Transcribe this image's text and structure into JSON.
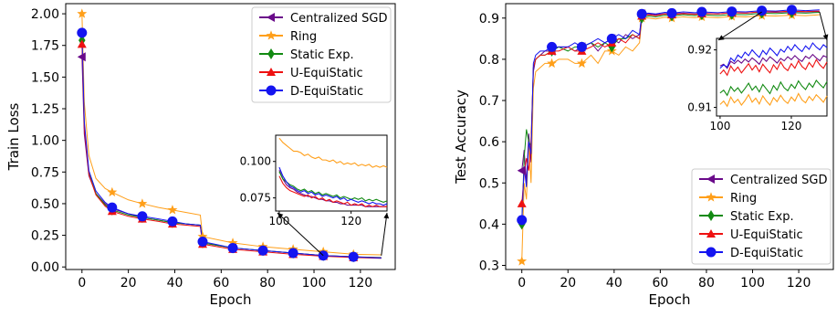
{
  "chart_data": [
    {
      "type": "line",
      "xlabel": "Epoch",
      "ylabel": "Train Loss",
      "xlim": [
        -7,
        135
      ],
      "ylim": [
        -0.02,
        2.08
      ],
      "xticks": [
        0,
        20,
        40,
        60,
        80,
        100,
        120
      ],
      "yticks": [
        0.0,
        0.25,
        0.5,
        0.75,
        1.0,
        1.25,
        1.5,
        1.75,
        2.0
      ],
      "ytick_labels": [
        "0.00",
        "0.25",
        "0.50",
        "0.75",
        "1.00",
        "1.25",
        "1.50",
        "1.75",
        "2.00"
      ],
      "legend_position": "top-right",
      "series": [
        {
          "name": "Centralized SGD",
          "color": "#6a0a8a",
          "marker": "triangle-left",
          "x": [
            0,
            1,
            3,
            6,
            10,
            13,
            20,
            26,
            33,
            39,
            45,
            51,
            52,
            65,
            78,
            91,
            104,
            117,
            129
          ],
          "y": [
            1.66,
            1.05,
            0.72,
            0.58,
            0.5,
            0.46,
            0.42,
            0.39,
            0.37,
            0.35,
            0.34,
            0.33,
            0.19,
            0.15,
            0.13,
            0.11,
            0.09,
            0.08,
            0.075
          ]
        },
        {
          "name": "Ring",
          "color": "#ff9f1a",
          "marker": "star",
          "x": [
            0,
            1,
            3,
            6,
            10,
            13,
            20,
            26,
            33,
            39,
            45,
            51,
            52,
            65,
            78,
            91,
            104,
            117,
            129
          ],
          "y": [
            2.0,
            1.3,
            0.88,
            0.7,
            0.62,
            0.59,
            0.53,
            0.5,
            0.47,
            0.45,
            0.43,
            0.41,
            0.24,
            0.19,
            0.16,
            0.14,
            0.12,
            0.1,
            0.095
          ]
        },
        {
          "name": "Static Exp.",
          "color": "#128a12",
          "marker": "diamond",
          "x": [
            0,
            1,
            3,
            6,
            10,
            13,
            20,
            26,
            33,
            39,
            45,
            51,
            52,
            65,
            78,
            91,
            104,
            117,
            129
          ],
          "y": [
            1.79,
            1.12,
            0.74,
            0.58,
            0.49,
            0.45,
            0.41,
            0.39,
            0.37,
            0.35,
            0.34,
            0.33,
            0.19,
            0.15,
            0.13,
            0.11,
            0.09,
            0.08,
            0.072
          ]
        },
        {
          "name": "U-EquiStatic",
          "color": "#ee1111",
          "marker": "triangle-up",
          "x": [
            0,
            1,
            3,
            6,
            10,
            13,
            20,
            26,
            33,
            39,
            45,
            51,
            52,
            65,
            78,
            91,
            104,
            117,
            129
          ],
          "y": [
            1.76,
            1.1,
            0.73,
            0.57,
            0.48,
            0.44,
            0.4,
            0.38,
            0.36,
            0.34,
            0.33,
            0.32,
            0.18,
            0.14,
            0.12,
            0.1,
            0.085,
            0.075,
            0.068
          ]
        },
        {
          "name": "D-EquiStatic",
          "color": "#1515f0",
          "marker": "circle",
          "x": [
            0,
            1,
            3,
            6,
            10,
            13,
            20,
            26,
            33,
            39,
            45,
            51,
            52,
            65,
            78,
            91,
            104,
            117,
            129
          ],
          "y": [
            1.85,
            1.15,
            0.76,
            0.6,
            0.51,
            0.47,
            0.42,
            0.4,
            0.38,
            0.36,
            0.34,
            0.33,
            0.2,
            0.15,
            0.13,
            0.11,
            0.09,
            0.08,
            0.07
          ]
        }
      ],
      "inset": {
        "xlim": [
          99,
          130
        ],
        "ylim": [
          0.066,
          0.118
        ],
        "xticks": [
          100,
          120
        ],
        "yticks": [
          0.075,
          0.1
        ],
        "ytick_labels": [
          "0.075",
          "0.100"
        ],
        "series_y": [
          [
            0.094,
            0.088,
            0.084,
            0.082,
            0.081,
            0.079,
            0.078,
            0.077,
            0.076,
            0.076,
            0.075,
            0.074,
            0.074,
            0.073,
            0.073,
            0.072,
            0.072,
            0.071,
            0.071,
            0.07,
            0.07,
            0.07,
            0.07,
            0.07,
            0.069,
            0.069,
            0.069,
            0.069,
            0.069,
            0.069,
            0.069
          ],
          [
            0.116,
            0.113,
            0.111,
            0.109,
            0.107,
            0.107,
            0.106,
            0.104,
            0.105,
            0.103,
            0.102,
            0.103,
            0.101,
            0.101,
            0.1,
            0.101,
            0.099,
            0.1,
            0.098,
            0.099,
            0.098,
            0.099,
            0.097,
            0.098,
            0.097,
            0.098,
            0.096,
            0.097,
            0.096,
            0.097,
            0.096
          ],
          [
            0.093,
            0.088,
            0.086,
            0.084,
            0.083,
            0.081,
            0.08,
            0.081,
            0.079,
            0.08,
            0.078,
            0.079,
            0.077,
            0.078,
            0.077,
            0.076,
            0.077,
            0.075,
            0.076,
            0.075,
            0.074,
            0.075,
            0.074,
            0.075,
            0.073,
            0.074,
            0.073,
            0.074,
            0.073,
            0.072,
            0.073
          ],
          [
            0.09,
            0.085,
            0.082,
            0.08,
            0.079,
            0.078,
            0.077,
            0.076,
            0.077,
            0.075,
            0.076,
            0.074,
            0.075,
            0.073,
            0.074,
            0.072,
            0.073,
            0.072,
            0.071,
            0.072,
            0.07,
            0.071,
            0.07,
            0.071,
            0.069,
            0.07,
            0.069,
            0.07,
            0.069,
            0.069,
            0.069
          ],
          [
            0.096,
            0.09,
            0.086,
            0.083,
            0.082,
            0.08,
            0.079,
            0.08,
            0.078,
            0.079,
            0.077,
            0.078,
            0.076,
            0.077,
            0.076,
            0.075,
            0.076,
            0.074,
            0.075,
            0.073,
            0.074,
            0.073,
            0.072,
            0.073,
            0.072,
            0.071,
            0.072,
            0.071,
            0.071,
            0.07,
            0.071
          ]
        ]
      }
    },
    {
      "type": "line",
      "xlabel": "Epoch",
      "ylabel": "Test Accuracy",
      "xlim": [
        -7,
        135
      ],
      "ylim": [
        0.29,
        0.935
      ],
      "xticks": [
        0,
        20,
        40,
        60,
        80,
        100,
        120
      ],
      "yticks": [
        0.3,
        0.4,
        0.5,
        0.6,
        0.7,
        0.8,
        0.9
      ],
      "ytick_labels": [
        "0.3",
        "0.4",
        "0.5",
        "0.6",
        "0.7",
        "0.8",
        "0.9"
      ],
      "legend_position": "lower-right",
      "series": [
        {
          "name": "Centralized SGD",
          "color": "#6a0a8a",
          "marker": "triangle-left",
          "x": [
            0,
            1,
            2,
            3,
            4,
            5,
            6,
            8,
            10,
            13,
            16,
            20,
            23,
            26,
            30,
            33,
            36,
            39,
            42,
            45,
            48,
            51,
            52,
            55,
            58,
            62,
            65,
            70,
            75,
            78,
            85,
            91,
            97,
            104,
            110,
            117,
            123,
            129
          ],
          "y": [
            0.53,
            0.58,
            0.5,
            0.62,
            0.55,
            0.77,
            0.8,
            0.81,
            0.82,
            0.82,
            0.83,
            0.83,
            0.82,
            0.83,
            0.84,
            0.82,
            0.84,
            0.85,
            0.84,
            0.86,
            0.85,
            0.86,
            0.91,
            0.91,
            0.908,
            0.911,
            0.91,
            0.912,
            0.91,
            0.912,
            0.91,
            0.913,
            0.912,
            0.915,
            0.914,
            0.916,
            0.915,
            0.916
          ]
        },
        {
          "name": "Ring",
          "color": "#ff9f1a",
          "marker": "star",
          "x": [
            0,
            1,
            2,
            3,
            4,
            5,
            6,
            8,
            10,
            13,
            16,
            20,
            23,
            26,
            30,
            33,
            36,
            39,
            42,
            45,
            48,
            51,
            52,
            55,
            58,
            62,
            65,
            70,
            75,
            78,
            85,
            91,
            97,
            104,
            110,
            117,
            123,
            129
          ],
          "y": [
            0.31,
            0.5,
            0.46,
            0.6,
            0.5,
            0.73,
            0.77,
            0.78,
            0.79,
            0.79,
            0.8,
            0.8,
            0.79,
            0.79,
            0.81,
            0.79,
            0.82,
            0.82,
            0.81,
            0.83,
            0.82,
            0.84,
            0.9,
            0.9,
            0.898,
            0.902,
            0.9,
            0.903,
            0.901,
            0.903,
            0.901,
            0.904,
            0.903,
            0.906,
            0.905,
            0.907,
            0.906,
            0.908
          ]
        },
        {
          "name": "Static Exp.",
          "color": "#128a12",
          "marker": "diamond",
          "x": [
            0,
            1,
            2,
            3,
            4,
            5,
            6,
            8,
            10,
            13,
            16,
            20,
            23,
            26,
            30,
            33,
            36,
            39,
            42,
            45,
            48,
            51,
            52,
            55,
            58,
            62,
            65,
            70,
            75,
            78,
            85,
            91,
            97,
            104,
            110,
            117,
            123,
            129
          ],
          "y": [
            0.4,
            0.56,
            0.63,
            0.6,
            0.59,
            0.78,
            0.8,
            0.81,
            0.81,
            0.82,
            0.83,
            0.82,
            0.83,
            0.83,
            0.84,
            0.83,
            0.84,
            0.83,
            0.85,
            0.85,
            0.86,
            0.85,
            0.9,
            0.905,
            0.903,
            0.907,
            0.905,
            0.908,
            0.906,
            0.908,
            0.906,
            0.909,
            0.908,
            0.912,
            0.911,
            0.913,
            0.912,
            0.914
          ]
        },
        {
          "name": "U-EquiStatic",
          "color": "#ee1111",
          "marker": "triangle-up",
          "x": [
            0,
            1,
            2,
            3,
            4,
            5,
            6,
            8,
            10,
            13,
            16,
            20,
            23,
            26,
            30,
            33,
            36,
            39,
            42,
            45,
            48,
            51,
            52,
            55,
            58,
            62,
            65,
            70,
            75,
            78,
            85,
            91,
            97,
            104,
            110,
            117,
            123,
            129
          ],
          "y": [
            0.45,
            0.52,
            0.56,
            0.53,
            0.6,
            0.78,
            0.8,
            0.81,
            0.81,
            0.82,
            0.82,
            0.83,
            0.82,
            0.82,
            0.83,
            0.84,
            0.83,
            0.84,
            0.85,
            0.84,
            0.86,
            0.85,
            0.905,
            0.908,
            0.906,
            0.91,
            0.908,
            0.911,
            0.909,
            0.911,
            0.91,
            0.913,
            0.912,
            0.916,
            0.915,
            0.917,
            0.916,
            0.917
          ]
        },
        {
          "name": "D-EquiStatic",
          "color": "#1515f0",
          "marker": "circle",
          "x": [
            0,
            1,
            2,
            3,
            4,
            5,
            6,
            8,
            10,
            13,
            16,
            20,
            23,
            26,
            30,
            33,
            36,
            39,
            42,
            45,
            48,
            51,
            52,
            55,
            58,
            62,
            65,
            70,
            75,
            78,
            85,
            91,
            97,
            104,
            110,
            117,
            123,
            129
          ],
          "y": [
            0.41,
            0.54,
            0.49,
            0.6,
            0.57,
            0.79,
            0.81,
            0.82,
            0.82,
            0.83,
            0.83,
            0.83,
            0.84,
            0.83,
            0.84,
            0.85,
            0.84,
            0.85,
            0.86,
            0.85,
            0.87,
            0.86,
            0.91,
            0.912,
            0.91,
            0.914,
            0.912,
            0.915,
            0.913,
            0.915,
            0.913,
            0.916,
            0.915,
            0.918,
            0.917,
            0.92,
            0.918,
            0.92
          ]
        }
      ],
      "inset": {
        "xlim": [
          99,
          130
        ],
        "ylim": [
          0.9085,
          0.922
        ],
        "xticks": [
          100,
          120
        ],
        "yticks": [
          0.91,
          0.92
        ],
        "ytick_labels": [
          "0.91",
          "0.92"
        ],
        "series_y": [
          [
            0.9172,
            0.9175,
            0.9168,
            0.918,
            0.9176,
            0.9182,
            0.9177,
            0.9184,
            0.9179,
            0.9186,
            0.9181,
            0.9175,
            0.9186,
            0.918,
            0.9188,
            0.9183,
            0.9177,
            0.9185,
            0.9181,
            0.9188,
            0.9183,
            0.919,
            0.9184,
            0.918,
            0.9189,
            0.9185,
            0.9192,
            0.9186,
            0.9181,
            0.919,
            0.9187
          ],
          [
            0.9105,
            0.9111,
            0.9102,
            0.9118,
            0.9108,
            0.9114,
            0.9104,
            0.9112,
            0.9122,
            0.9109,
            0.9116,
            0.9106,
            0.912,
            0.9111,
            0.9104,
            0.9117,
            0.911,
            0.9121,
            0.9112,
            0.9107,
            0.9118,
            0.9111,
            0.9124,
            0.9113,
            0.9108,
            0.9119,
            0.9112,
            0.9122,
            0.9116,
            0.9109,
            0.912
          ],
          [
            0.9125,
            0.913,
            0.9121,
            0.9136,
            0.9128,
            0.9134,
            0.9125,
            0.9133,
            0.9142,
            0.913,
            0.9137,
            0.9127,
            0.914,
            0.9132,
            0.9124,
            0.9138,
            0.913,
            0.9144,
            0.9134,
            0.9129,
            0.914,
            0.9133,
            0.9146,
            0.9137,
            0.9131,
            0.9142,
            0.9135,
            0.9147,
            0.914,
            0.9134,
            0.9145
          ],
          [
            0.9158,
            0.9165,
            0.9156,
            0.9172,
            0.9163,
            0.917,
            0.916,
            0.9168,
            0.9176,
            0.9165,
            0.9173,
            0.9162,
            0.9175,
            0.9167,
            0.916,
            0.9174,
            0.9166,
            0.9179,
            0.9169,
            0.9164,
            0.9176,
            0.9168,
            0.9181,
            0.9171,
            0.9166,
            0.9178,
            0.917,
            0.9183,
            0.9174,
            0.9168,
            0.9179
          ],
          [
            0.9168,
            0.9174,
            0.917,
            0.9186,
            0.918,
            0.9191,
            0.9186,
            0.9196,
            0.919,
            0.92,
            0.9193,
            0.9187,
            0.9199,
            0.9192,
            0.9203,
            0.9197,
            0.919,
            0.9201,
            0.9196,
            0.9206,
            0.9199,
            0.9209,
            0.9202,
            0.9197,
            0.9207,
            0.9201,
            0.9212,
            0.9205,
            0.92,
            0.9209,
            0.9204
          ]
        ]
      }
    }
  ]
}
